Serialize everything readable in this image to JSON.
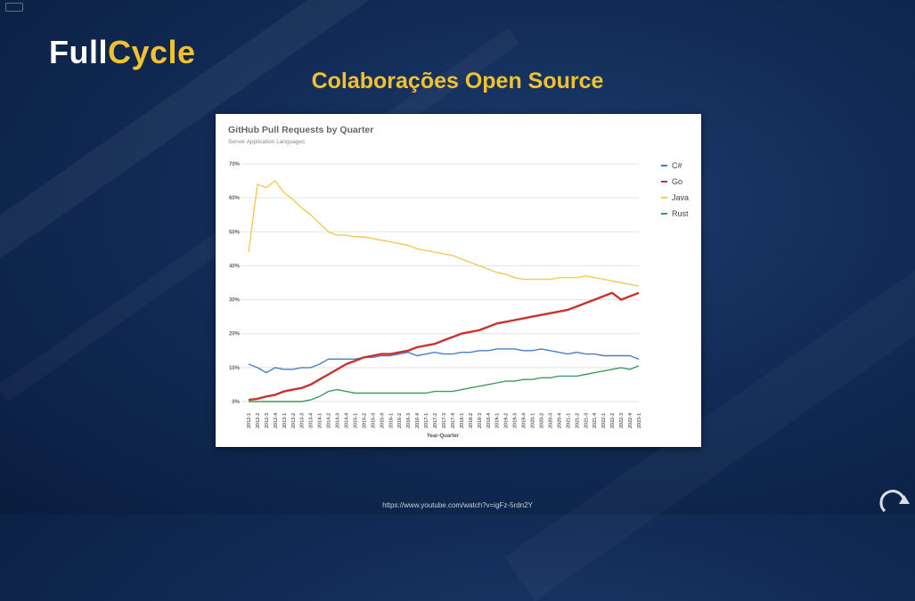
{
  "logo": {
    "part1": "Full",
    "part2": "Cycle"
  },
  "slide_title": "Colaborações Open Source",
  "footer_url": "https://www.youtube.com/watch?v=igFz-5rdn2Y",
  "colors": {
    "background": "#122c57",
    "accent": "#f2c12e",
    "csharp": "#4a7ec4",
    "go": "#c8332e",
    "java": "#f0cc54",
    "rust": "#3f9a61"
  },
  "chart_data": {
    "type": "line",
    "title": "GitHub Pull Requests by Quarter",
    "subtitle": "Server Application Languages",
    "xlabel": "Year-Quarter",
    "ylabel": "",
    "ylim": [
      0,
      70
    ],
    "yticks": [
      "0%",
      "10%",
      "20%",
      "30%",
      "40%",
      "50%",
      "60%",
      "70%"
    ],
    "grid": true,
    "legend_position": "right",
    "categories": [
      "2012-1",
      "2012-2",
      "2012-3",
      "2012-4",
      "2013-1",
      "2013-2",
      "2013-3",
      "2013-4",
      "2014-1",
      "2014-2",
      "2014-3",
      "2014-4",
      "2015-1",
      "2015-2",
      "2015-3",
      "2015-4",
      "2016-1",
      "2016-2",
      "2016-3",
      "2016-4",
      "2017-1",
      "2017-2",
      "2017-3",
      "2017-4",
      "2018-1",
      "2018-2",
      "2018-3",
      "2018-4",
      "2019-1",
      "2019-2",
      "2019-3",
      "2019-4",
      "2020-1",
      "2020-2",
      "2020-3",
      "2020-4",
      "2021-1",
      "2021-2",
      "2021-3",
      "2021-4",
      "2022-1",
      "2022-2",
      "2022-3",
      "2022-4",
      "2023-1"
    ],
    "series": [
      {
        "name": "C#",
        "color": "#4a7ec4",
        "values": [
          11,
          10,
          8.5,
          10,
          9.5,
          9.5,
          10,
          10,
          11,
          12.5,
          12.5,
          12.5,
          12.5,
          13,
          13,
          13.5,
          13.5,
          14,
          14.5,
          13.5,
          14,
          14.5,
          14,
          14,
          14.5,
          14.5,
          15,
          15,
          15.5,
          15.5,
          15.5,
          15,
          15,
          15.5,
          15,
          14.5,
          14,
          14.5,
          14,
          14,
          13.5,
          13.5,
          13.5,
          13.5,
          12.5
        ]
      },
      {
        "name": "Go",
        "color": "#c8332e",
        "values": [
          0.5,
          0.8,
          1.5,
          2,
          3,
          3.5,
          4,
          5,
          6.5,
          8,
          9.5,
          11,
          12,
          13,
          13.5,
          14,
          14,
          14.5,
          15,
          16,
          16.5,
          17,
          18,
          19,
          20,
          20.5,
          21,
          22,
          23,
          23.5,
          24,
          24.5,
          25,
          25.5,
          26,
          26.5,
          27,
          28,
          29,
          30,
          31,
          32,
          30,
          31,
          32
        ]
      },
      {
        "name": "Java",
        "color": "#f0cc54",
        "values": [
          44,
          64,
          63,
          65,
          61.5,
          59.5,
          57,
          55,
          52.5,
          50,
          49,
          49,
          48.5,
          48.5,
          48,
          47.5,
          47,
          46.5,
          46,
          45,
          44.5,
          44,
          43.5,
          43,
          42,
          41,
          40,
          39,
          38,
          37.5,
          36.5,
          36,
          36,
          36,
          36,
          36.5,
          36.5,
          36.5,
          37,
          36.5,
          36,
          35.5,
          35,
          34.5,
          34
        ]
      },
      {
        "name": "Rust",
        "color": "#3f9a61",
        "values": [
          0,
          0,
          0,
          0,
          0,
          0,
          0,
          0.5,
          1.5,
          3,
          3.5,
          3,
          2.5,
          2.5,
          2.5,
          2.5,
          2.5,
          2.5,
          2.5,
          2.5,
          2.5,
          3,
          3,
          3,
          3.5,
          4,
          4.5,
          5,
          5.5,
          6,
          6,
          6.5,
          6.5,
          7,
          7,
          7.5,
          7.5,
          7.5,
          8,
          8.5,
          9,
          9.5,
          10,
          9.5,
          10.5
        ]
      }
    ]
  }
}
